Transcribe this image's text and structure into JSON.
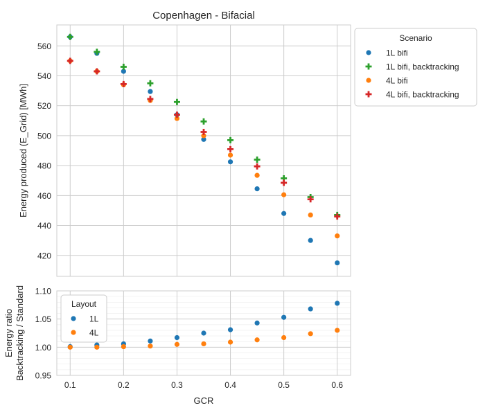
{
  "chart_data": [
    {
      "type": "scatter",
      "title": "Copenhagen - Bifacial",
      "xlabel": "",
      "ylabel": "Energy produced (E_Grid) [MWh]",
      "x": [
        0.1,
        0.15,
        0.2,
        0.25,
        0.3,
        0.35,
        0.4,
        0.45,
        0.5,
        0.55,
        0.6
      ],
      "xlim": [
        0.075,
        0.625
      ],
      "ylim": [
        406,
        574
      ],
      "yticks": [
        420,
        440,
        460,
        480,
        500,
        520,
        540,
        560
      ],
      "grid": true,
      "legend": {
        "title": "Scenario",
        "placement": "outside-right"
      },
      "series": [
        {
          "name": "1L bifi",
          "marker": "circle",
          "color": "#1f77b4",
          "values": [
            566,
            555,
            543,
            529.5,
            514,
            497.5,
            482.5,
            464.5,
            448,
            430,
            415
          ]
        },
        {
          "name": "1L bifi, backtracking",
          "marker": "plus",
          "color": "#2ca02c",
          "values": [
            566,
            556,
            546,
            535,
            522.5,
            509.5,
            497,
            484,
            471.5,
            459,
            447
          ]
        },
        {
          "name": "4L bifi",
          "marker": "circle",
          "color": "#ff7f0e",
          "values": [
            550,
            543,
            534,
            523.5,
            511.5,
            500,
            487,
            473.5,
            460.5,
            447,
            433
          ]
        },
        {
          "name": "4L bifi, backtracking",
          "marker": "plus",
          "color": "#d62728",
          "values": [
            550,
            543,
            534.5,
            524.5,
            514,
            502.5,
            491,
            479.5,
            468.5,
            457.5,
            446
          ]
        }
      ]
    },
    {
      "type": "scatter",
      "title": "",
      "xlabel": "GCR",
      "ylabel": [
        "Energy ratio",
        "Backtracking / Standard"
      ],
      "x": [
        0.1,
        0.15,
        0.2,
        0.25,
        0.3,
        0.35,
        0.4,
        0.45,
        0.5,
        0.55,
        0.6
      ],
      "xlim": [
        0.075,
        0.625
      ],
      "xticks": [
        0.1,
        0.2,
        0.3,
        0.4,
        0.5,
        0.6
      ],
      "ylim": [
        0.95,
        1.1
      ],
      "yticks": [
        0.95,
        1.0,
        1.05,
        1.1
      ],
      "ytick_labels": [
        "0.95",
        "1.00",
        "1.05",
        "1.10"
      ],
      "grid": true,
      "legend": {
        "title": "Layout",
        "placement": "upper-left"
      },
      "series": [
        {
          "name": "1L",
          "marker": "circle",
          "color": "#1f77b4",
          "values": [
            1.001,
            1.004,
            1.006,
            1.011,
            1.017,
            1.025,
            1.031,
            1.043,
            1.053,
            1.068,
            1.078
          ]
        },
        {
          "name": "4L",
          "marker": "circle",
          "color": "#ff7f0e",
          "values": [
            1.0,
            1.0,
            1.001,
            1.002,
            1.005,
            1.006,
            1.009,
            1.013,
            1.017,
            1.024,
            1.03
          ]
        }
      ]
    }
  ]
}
